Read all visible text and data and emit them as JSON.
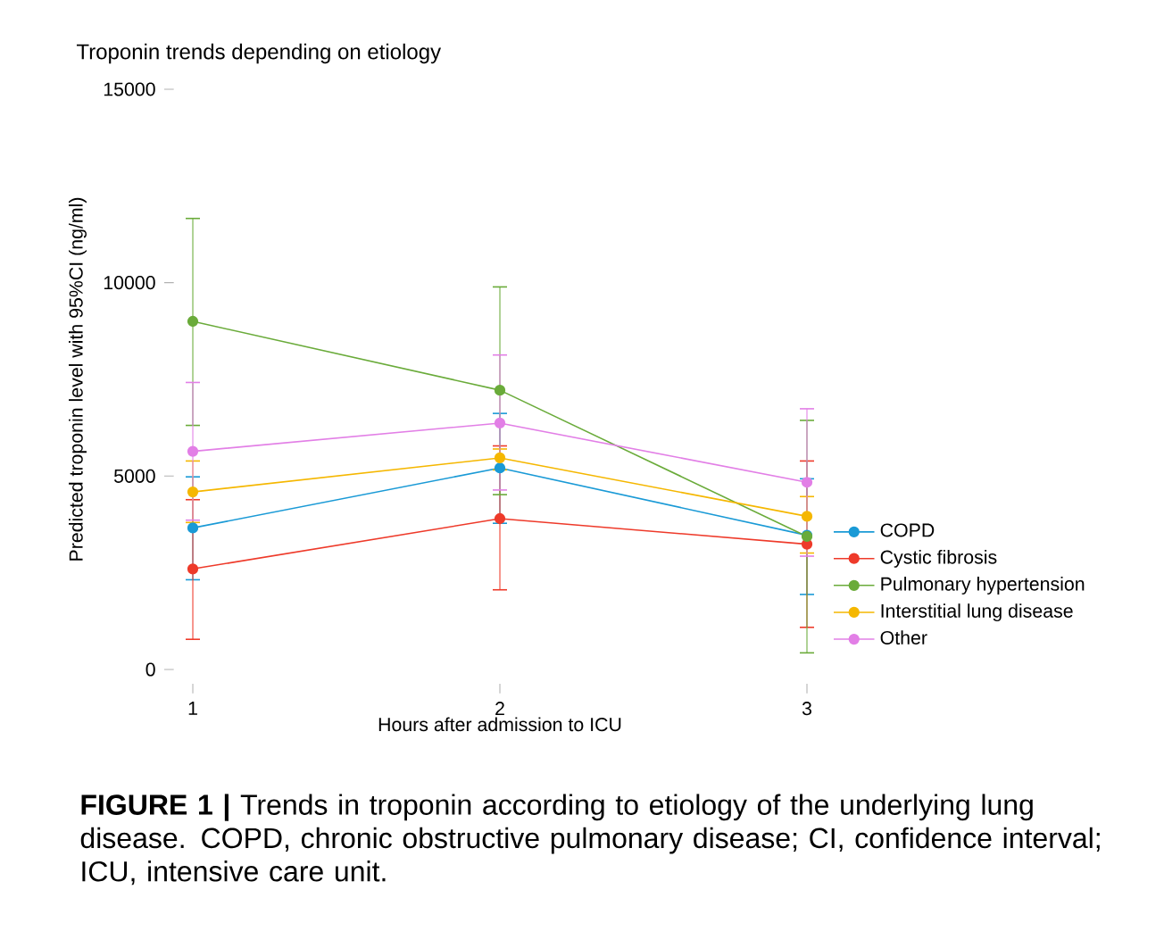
{
  "chart_data": {
    "type": "line",
    "title": "Troponin trends depending on etiology",
    "xlabel": "Hours after admission to ICU",
    "ylabel": "Predicted troponin level with 95%CI (ng/ml)",
    "x": [
      1,
      2,
      3
    ],
    "series": [
      {
        "name": "COPD",
        "color": "#1a9ad6",
        "values": [
          3660,
          5210,
          3470
        ],
        "errors": [
          [
            2320,
            4980
          ],
          [
            3780,
            6620
          ],
          [
            1940,
            4930
          ]
        ]
      },
      {
        "name": "Cystic fibrosis",
        "color": "#ee3a2a",
        "values": [
          2600,
          3900,
          3240
        ],
        "errors": [
          [
            780,
            4390
          ],
          [
            2060,
            5780
          ],
          [
            1090,
            5390
          ]
        ]
      },
      {
        "name": "Pulmonary hypertension",
        "color": "#6aab3a",
        "values": [
          9000,
          7220,
          3440
        ],
        "errors": [
          [
            6310,
            11660
          ],
          [
            4520,
            9890
          ],
          [
            430,
            6440
          ]
        ]
      },
      {
        "name": "Interstitial lung disease",
        "color": "#f5b700",
        "values": [
          4590,
          5470,
          3960
        ],
        "errors": [
          [
            3800,
            5390
          ],
          [
            5160,
            5700
          ],
          [
            3010,
            4470
          ]
        ]
      },
      {
        "name": "Other",
        "color": "#e27fe6",
        "values": [
          5640,
          6370,
          4840
        ],
        "errors": [
          [
            3860,
            7420
          ],
          [
            4640,
            8130
          ],
          [
            2930,
            6740
          ]
        ]
      }
    ],
    "xlim": [
      1,
      3
    ],
    "ylim": [
      0,
      15000
    ],
    "xticks": [
      1,
      2,
      3
    ],
    "yticks": [
      0,
      5000,
      10000,
      15000
    ],
    "legend": "right",
    "marker": "circle",
    "line_style": "solid",
    "grid": false,
    "annotations": [
      "**FIGURE 1 |** Trends in troponin according to etiology of the underlying lung disease. COPD, chronic obstructive pulmonary disease; CI, confidence interval; ICU, intensive care unit."
    ]
  }
}
